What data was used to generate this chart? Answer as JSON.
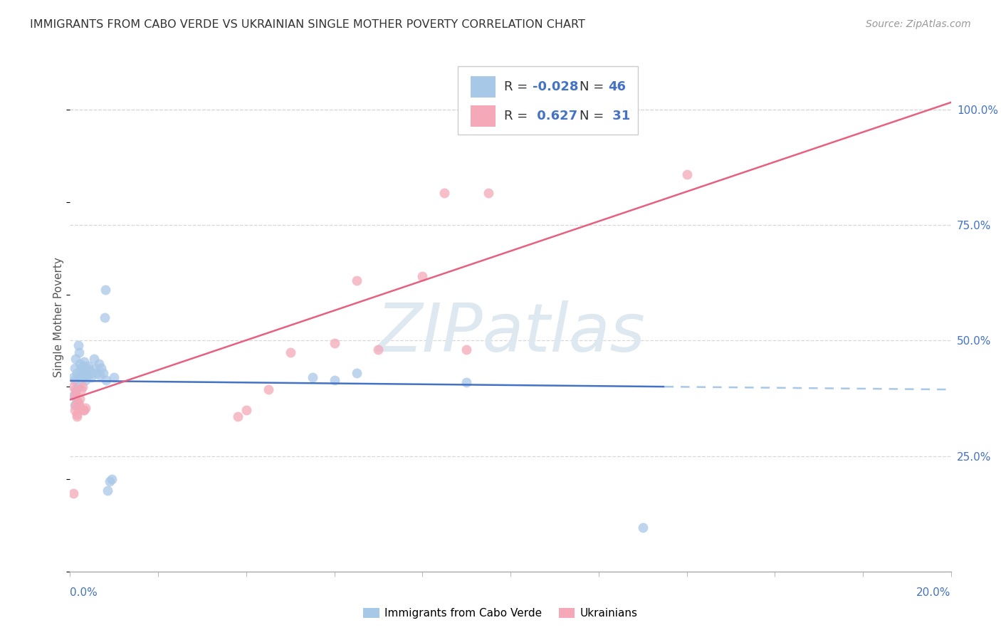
{
  "title": "IMMIGRANTS FROM CABO VERDE VS UKRAINIAN SINGLE MOTHER POVERTY CORRELATION CHART",
  "source": "Source: ZipAtlas.com",
  "ylabel": "Single Mother Poverty",
  "right_yticks": [
    "25.0%",
    "50.0%",
    "75.0%",
    "100.0%"
  ],
  "right_ytick_vals": [
    0.25,
    0.5,
    0.75,
    1.0
  ],
  "color_blue": "#a8c8e8",
  "color_pink": "#f4a8b8",
  "color_blue_line": "#4472c4",
  "color_blue_dash": "#a8c8e8",
  "color_pink_line": "#e86080",
  "color_grid": "#d8d8d8",
  "watermark_color": "#dde8f0",
  "r_blue": -0.028,
  "n_blue": 46,
  "r_pink": 0.627,
  "n_pink": 31,
  "xlim": [
    0.0,
    0.2
  ],
  "ylim": [
    0.0,
    1.1
  ],
  "cabo_verde_x": [
    0.0008,
    0.001,
    0.0012,
    0.0015,
    0.001,
    0.0008,
    0.0012,
    0.0015,
    0.001,
    0.0018,
    0.002,
    0.0022,
    0.0025,
    0.002,
    0.0018,
    0.0025,
    0.003,
    0.0028,
    0.003,
    0.0032,
    0.0035,
    0.0038,
    0.004,
    0.0042,
    0.0045,
    0.0048,
    0.005,
    0.0055,
    0.0058,
    0.006,
    0.0065,
    0.0068,
    0.007,
    0.0075,
    0.0078,
    0.008,
    0.0082,
    0.0085,
    0.009,
    0.0095,
    0.01,
    0.055,
    0.06,
    0.065,
    0.09,
    0.13
  ],
  "cabo_verde_y": [
    0.42,
    0.44,
    0.46,
    0.43,
    0.415,
    0.38,
    0.395,
    0.37,
    0.36,
    0.4,
    0.42,
    0.45,
    0.44,
    0.475,
    0.49,
    0.43,
    0.445,
    0.42,
    0.43,
    0.455,
    0.415,
    0.44,
    0.425,
    0.445,
    0.435,
    0.42,
    0.43,
    0.46,
    0.44,
    0.43,
    0.45,
    0.425,
    0.44,
    0.43,
    0.55,
    0.61,
    0.415,
    0.175,
    0.195,
    0.2,
    0.42,
    0.42,
    0.415,
    0.43,
    0.41,
    0.095
  ],
  "ukraine_x": [
    0.0008,
    0.001,
    0.0012,
    0.0015,
    0.001,
    0.0008,
    0.0012,
    0.0015,
    0.002,
    0.0018,
    0.0022,
    0.0025,
    0.0028,
    0.003,
    0.0032,
    0.0035,
    0.038,
    0.04,
    0.045,
    0.05,
    0.06,
    0.065,
    0.07,
    0.08,
    0.085,
    0.09,
    0.095,
    0.1,
    0.11,
    0.12,
    0.14
  ],
  "ukraine_y": [
    0.4,
    0.38,
    0.36,
    0.34,
    0.35,
    0.17,
    0.39,
    0.335,
    0.36,
    0.365,
    0.375,
    0.395,
    0.4,
    0.35,
    0.35,
    0.355,
    0.335,
    0.35,
    0.395,
    0.475,
    0.495,
    0.63,
    0.48,
    0.64,
    0.82,
    0.48,
    0.82,
    1.0,
    1.0,
    1.0,
    0.86
  ]
}
